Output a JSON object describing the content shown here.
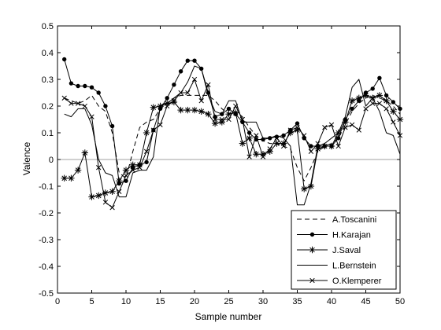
{
  "chart_data": {
    "type": "line",
    "title": "",
    "xlabel": "Sample number",
    "ylabel": "Valence",
    "xlim": [
      0,
      50
    ],
    "ylim": [
      -0.5,
      0.5
    ],
    "x_ticks": [
      0,
      5,
      10,
      15,
      20,
      25,
      30,
      35,
      40,
      45,
      50
    ],
    "y_ticks": [
      -0.5,
      -0.4,
      -0.3,
      -0.2,
      -0.1,
      0,
      0.1,
      0.2,
      0.3,
      0.4,
      0.5
    ],
    "y_tick_labels": [
      "-0.5",
      "-0.4",
      "-0.3",
      "-0.2",
      "-0.1",
      "0",
      "0.1",
      "0.2",
      "0.3",
      "0.4",
      "0.5"
    ],
    "zero_reference_line": true,
    "grid": false,
    "legend_position": "bottom-right",
    "x": [
      1,
      2,
      3,
      4,
      5,
      6,
      7,
      8,
      9,
      10,
      11,
      12,
      13,
      14,
      15,
      16,
      17,
      18,
      19,
      20,
      21,
      22,
      23,
      24,
      25,
      26,
      27,
      28,
      29,
      30,
      31,
      32,
      33,
      34,
      35,
      36,
      37,
      38,
      39,
      40,
      41,
      42,
      43,
      44,
      45,
      46,
      47,
      48,
      49,
      50
    ],
    "series": [
      {
        "name": "A.Toscanini",
        "line_style": "dashed",
        "marker": "none",
        "color": "#000000",
        "values": [
          0.23,
          0.22,
          0.21,
          0.22,
          0.24,
          0.2,
          0.18,
          0.1,
          -0.05,
          -0.07,
          0.03,
          0.12,
          0.14,
          0.15,
          0.19,
          0.21,
          0.23,
          0.24,
          0.24,
          0.24,
          0.24,
          0.24,
          0.22,
          0.19,
          0.17,
          0.18,
          0.16,
          0.12,
          0.09,
          0.07,
          0.06,
          0.06,
          0.05,
          0.04,
          -0.03,
          -0.08,
          -0.03,
          0.03,
          0.05,
          0.06,
          0.08,
          0.13,
          0.18,
          0.21,
          0.23,
          0.24,
          0.23,
          0.22,
          0.2,
          0.17
        ]
      },
      {
        "name": "H.Karajan",
        "line_style": "solid",
        "marker": "dot",
        "color": "#000000",
        "values": [
          0.375,
          0.285,
          0.275,
          0.275,
          0.27,
          0.25,
          0.2,
          0.125,
          -0.09,
          -0.08,
          -0.03,
          -0.02,
          -0.01,
          0.11,
          0.19,
          0.23,
          0.28,
          0.33,
          0.37,
          0.37,
          0.34,
          0.25,
          0.16,
          0.17,
          0.19,
          0.17,
          0.14,
          0.1,
          0.075,
          0.075,
          0.08,
          0.085,
          0.09,
          0.11,
          0.135,
          0.08,
          0.05,
          0.05,
          0.05,
          0.05,
          0.08,
          0.15,
          0.19,
          0.22,
          0.25,
          0.265,
          0.305,
          0.24,
          0.215,
          0.19
        ]
      },
      {
        "name": "J.Saval",
        "line_style": "solid",
        "marker": "asterisk",
        "color": "#000000",
        "values": [
          -0.07,
          -0.07,
          -0.04,
          0.025,
          -0.14,
          -0.135,
          -0.125,
          -0.12,
          -0.08,
          -0.04,
          -0.02,
          -0.02,
          0.1,
          0.195,
          0.2,
          0.21,
          0.215,
          0.185,
          0.185,
          0.185,
          0.18,
          0.17,
          0.135,
          0.14,
          0.17,
          0.175,
          0.06,
          0.08,
          0.02,
          0.02,
          0.03,
          0.06,
          0.06,
          0.1,
          0.11,
          -0.11,
          -0.1,
          0.04,
          0.05,
          0.05,
          0.1,
          0.14,
          0.22,
          0.23,
          0.24,
          0.23,
          0.24,
          0.22,
          0.18,
          0.15
        ]
      },
      {
        "name": "L.Bernstein",
        "line_style": "solid",
        "marker": "none",
        "color": "#000000",
        "values": [
          0.17,
          0.16,
          0.19,
          0.19,
          0.13,
          0.0,
          -0.05,
          -0.06,
          -0.14,
          -0.14,
          -0.05,
          -0.04,
          -0.04,
          0.01,
          0.2,
          0.21,
          0.23,
          0.25,
          0.29,
          0.35,
          0.34,
          0.24,
          0.18,
          0.17,
          0.22,
          0.22,
          0.14,
          0.14,
          0.14,
          0.08,
          0.08,
          0.09,
          0.08,
          0.05,
          -0.17,
          -0.17,
          -0.09,
          0.05,
          0.06,
          0.08,
          0.1,
          0.16,
          0.27,
          0.3,
          0.2,
          0.23,
          0.18,
          0.1,
          0.09,
          0.02
        ]
      },
      {
        "name": "O.Klemperer",
        "line_style": "solid",
        "marker": "x",
        "color": "#000000",
        "values": [
          0.23,
          0.21,
          0.21,
          0.2,
          0.16,
          -0.03,
          -0.16,
          -0.18,
          -0.12,
          -0.06,
          -0.04,
          -0.03,
          0.03,
          0.11,
          0.13,
          0.2,
          0.22,
          0.25,
          0.25,
          0.3,
          0.22,
          0.28,
          0.15,
          0.15,
          0.15,
          0.2,
          0.15,
          0.01,
          0.09,
          0.01,
          0.04,
          0.08,
          0.05,
          0.11,
          0.12,
          0.09,
          0.03,
          0.06,
          0.12,
          0.13,
          0.05,
          0.12,
          0.13,
          0.11,
          0.19,
          0.21,
          0.21,
          0.19,
          0.14,
          0.09
        ]
      }
    ]
  }
}
